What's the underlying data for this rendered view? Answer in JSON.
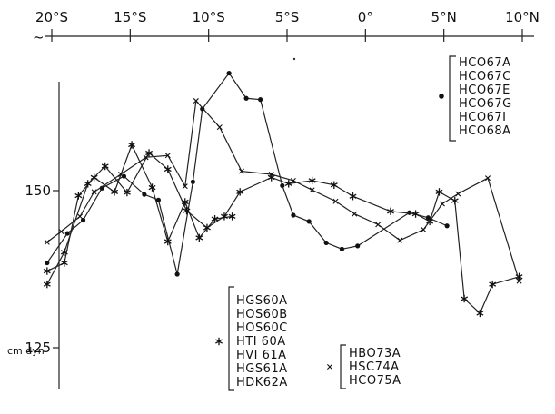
{
  "chart_data": {
    "type": "line",
    "title": "",
    "xlabel": "",
    "ylabel": "",
    "y_unit": "cm dyn",
    "x_ticks": [
      "20°S",
      "15°S",
      "10°S",
      "5°S",
      "0°",
      "5°N",
      "10°N"
    ],
    "x_tick_values": [
      -20,
      -15,
      -10,
      -5,
      0,
      5,
      10
    ],
    "y_ticks": [
      "150",
      "125"
    ],
    "y_tick_values": [
      150,
      125
    ],
    "xlim": [
      -20,
      10
    ],
    "ylim": [
      112,
      177
    ],
    "grid": false,
    "series": [
      {
        "marker": "dot",
        "legend": [
          "HCO67A",
          "HCO67C",
          "HCO67E",
          "HCO67G",
          "HCO67I",
          "HCO68A"
        ],
        "x": [
          -20.3,
          -19.0,
          -18.0,
          -16.8,
          -15.4,
          -14.1,
          -13.2,
          -12.0,
          -11.0,
          -10.4,
          -8.7,
          -7.6,
          -6.7,
          -5.3,
          -4.6,
          -3.6,
          -2.5,
          -1.5,
          -0.5,
          2.8,
          4.0,
          5.2
        ],
        "y": [
          138.5,
          143.2,
          145.3,
          150.4,
          152.3,
          149.4,
          148.5,
          136.7,
          151.4,
          163.0,
          168.7,
          164.7,
          164.5,
          150.8,
          146.1,
          145.1,
          141.7,
          140.7,
          141.2,
          146.5,
          145.7,
          144.4
        ]
      },
      {
        "marker": "asterisk",
        "legend": [
          "HGS60A",
          "HOS60B",
          "HOS60C",
          "HTI 60A",
          "HVI 61A",
          "HGS61A",
          "HDK62A"
        ],
        "x": [
          -20.3,
          -19.2,
          -18.3,
          -17.3,
          -16.0,
          -14.9,
          -13.6,
          -12.6,
          -11.5,
          -10.6,
          -9.6,
          -8.5
        ],
        "y": [
          137.2,
          138.5,
          149.2,
          152.1,
          149.8,
          157.3,
          150.5,
          141.9,
          148.2,
          142.5,
          145.5,
          145.9
        ]
      },
      {
        "marker": "asterisk",
        "x": [
          -20.3,
          -19.2,
          -17.7,
          -16.6,
          -15.2,
          -13.8,
          -12.6,
          -11.4,
          -10.1,
          -9.0,
          -8.0,
          -6.0,
          -4.9,
          -3.4,
          -2.0,
          -0.8,
          1.6,
          3.2,
          4.1,
          4.7,
          5.7,
          6.3,
          7.3,
          8.1,
          9.8
        ],
        "y": [
          135.1,
          140.2,
          151.1,
          153.9,
          149.7,
          156.0,
          153.4,
          146.8,
          144.1,
          145.9,
          149.8,
          152.1,
          151.1,
          151.6,
          150.9,
          149.1,
          146.7,
          146.3,
          145.1,
          149.8,
          148.4,
          132.8,
          130.5,
          135.1,
          136.3
        ]
      },
      {
        "marker": "cross",
        "legend": [
          "HBO73A",
          "HSC74A",
          "HCO75A"
        ],
        "x": [
          -20.3,
          -19.4,
          -18.2,
          -17.3,
          -15.6,
          -14.0,
          -12.6,
          -11.5,
          -10.8,
          -9.3,
          -7.9,
          -6.0,
          -4.6,
          -3.4,
          -1.9,
          -0.7,
          0.8,
          2.2,
          3.7,
          4.9,
          5.9,
          7.8,
          9.8
        ],
        "y": [
          141.8,
          143.5,
          145.9,
          149.8,
          152.6,
          155.3,
          155.6,
          150.7,
          164.3,
          160.1,
          153.1,
          152.6,
          151.6,
          150.1,
          148.3,
          146.3,
          144.6,
          142.1,
          143.8,
          147.9,
          149.5,
          152.0,
          135.6
        ]
      }
    ]
  }
}
